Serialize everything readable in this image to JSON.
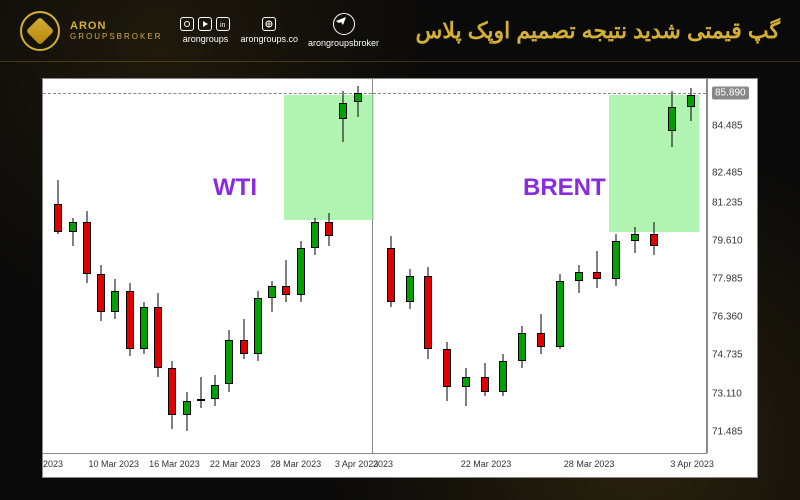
{
  "brand": {
    "line1": "ARON",
    "line2": "GROUPSBROKER"
  },
  "socials": {
    "group1_handle": "arongroups",
    "group2_handle": "arongroups.co",
    "group3_handle": "arongroupsbroker"
  },
  "title": "گپ قیمتی شدید نتیجه تصمیم اوپک پلاس",
  "colors": {
    "up": "#00a000",
    "down": "#e00000",
    "gap": "#90ee90",
    "gap_opacity": 0.7,
    "label": "#8a2be2",
    "bg_header": "#0a0a0a",
    "gold": "#d4af37",
    "chart_bg": "#ffffff",
    "grid": "#888888"
  },
  "y_axis": {
    "min": 70.5,
    "max": 86.5,
    "ticks": [
      71.485,
      73.11,
      74.735,
      76.36,
      77.985,
      79.61,
      81.235,
      82.485,
      84.485,
      85.89
    ],
    "current": 85.89
  },
  "x_axis": {
    "left": [
      "2023",
      "10 Mar 2023",
      "16 Mar 2023",
      "22 Mar 2023",
      "28 Mar 2023",
      "3 Apr 2023"
    ],
    "right": [
      "2023",
      "22 Mar 2023",
      "28 Mar 2023",
      "3 Apr 2023"
    ]
  },
  "labels": {
    "wti": {
      "text": "WTI",
      "color": "#8a2be2"
    },
    "brent": {
      "text": "BRENT",
      "color": "#8a2be2"
    }
  },
  "gap_boxes": {
    "wti": {
      "top_price": 85.8,
      "bottom_price": 80.5
    },
    "brent": {
      "top_price": 85.8,
      "bottom_price": 80.0
    }
  },
  "candles_wti": [
    {
      "o": 81.2,
      "h": 82.2,
      "l": 79.9,
      "c": 80.0
    },
    {
      "o": 80.0,
      "h": 80.6,
      "l": 79.4,
      "c": 80.4
    },
    {
      "o": 80.4,
      "h": 80.9,
      "l": 77.8,
      "c": 78.2
    },
    {
      "o": 78.2,
      "h": 78.6,
      "l": 76.2,
      "c": 76.6
    },
    {
      "o": 76.6,
      "h": 78.0,
      "l": 76.3,
      "c": 77.5
    },
    {
      "o": 77.5,
      "h": 77.8,
      "l": 74.7,
      "c": 75.0
    },
    {
      "o": 75.0,
      "h": 77.0,
      "l": 74.8,
      "c": 76.8
    },
    {
      "o": 76.8,
      "h": 77.4,
      "l": 73.8,
      "c": 74.2
    },
    {
      "o": 74.2,
      "h": 74.5,
      "l": 71.6,
      "c": 72.2
    },
    {
      "o": 72.2,
      "h": 73.2,
      "l": 71.5,
      "c": 72.8
    },
    {
      "o": 72.8,
      "h": 73.8,
      "l": 72.5,
      "c": 72.9
    },
    {
      "o": 72.9,
      "h": 73.9,
      "l": 72.6,
      "c": 73.5
    },
    {
      "o": 73.5,
      "h": 75.8,
      "l": 73.2,
      "c": 75.4
    },
    {
      "o": 75.4,
      "h": 76.3,
      "l": 74.6,
      "c": 74.8
    },
    {
      "o": 74.8,
      "h": 77.5,
      "l": 74.5,
      "c": 77.2
    },
    {
      "o": 77.2,
      "h": 77.9,
      "l": 76.6,
      "c": 77.7
    },
    {
      "o": 77.7,
      "h": 78.8,
      "l": 77.0,
      "c": 77.3
    },
    {
      "o": 77.3,
      "h": 79.6,
      "l": 77.0,
      "c": 79.3
    },
    {
      "o": 79.3,
      "h": 80.6,
      "l": 79.0,
      "c": 80.4
    },
    {
      "o": 80.4,
      "h": 80.8,
      "l": 79.4,
      "c": 79.8
    },
    {
      "o": 84.8,
      "h": 86.0,
      "l": 83.8,
      "c": 85.5
    },
    {
      "o": 85.5,
      "h": 86.2,
      "l": 84.9,
      "c": 85.9
    }
  ],
  "candles_brent": [
    {
      "o": 79.3,
      "h": 79.8,
      "l": 76.8,
      "c": 77.0
    },
    {
      "o": 77.0,
      "h": 78.4,
      "l": 76.7,
      "c": 78.1
    },
    {
      "o": 78.1,
      "h": 78.5,
      "l": 74.6,
      "c": 75.0
    },
    {
      "o": 75.0,
      "h": 75.3,
      "l": 72.8,
      "c": 73.4
    },
    {
      "o": 73.4,
      "h": 74.2,
      "l": 72.6,
      "c": 73.8
    },
    {
      "o": 73.8,
      "h": 74.4,
      "l": 73.0,
      "c": 73.2
    },
    {
      "o": 73.2,
      "h": 74.8,
      "l": 73.0,
      "c": 74.5
    },
    {
      "o": 74.5,
      "h": 76.0,
      "l": 74.2,
      "c": 75.7
    },
    {
      "o": 75.7,
      "h": 76.5,
      "l": 74.8,
      "c": 75.1
    },
    {
      "o": 75.1,
      "h": 78.2,
      "l": 75.0,
      "c": 77.9
    },
    {
      "o": 77.9,
      "h": 78.6,
      "l": 77.4,
      "c": 78.3
    },
    {
      "o": 78.3,
      "h": 79.2,
      "l": 77.6,
      "c": 78.0
    },
    {
      "o": 78.0,
      "h": 79.9,
      "l": 77.7,
      "c": 79.6
    },
    {
      "o": 79.6,
      "h": 80.2,
      "l": 79.1,
      "c": 79.9
    },
    {
      "o": 79.9,
      "h": 80.4,
      "l": 79.0,
      "c": 79.4
    },
    {
      "o": 84.3,
      "h": 86.0,
      "l": 83.6,
      "c": 85.3
    },
    {
      "o": 85.3,
      "h": 86.1,
      "l": 84.7,
      "c": 85.8
    }
  ]
}
